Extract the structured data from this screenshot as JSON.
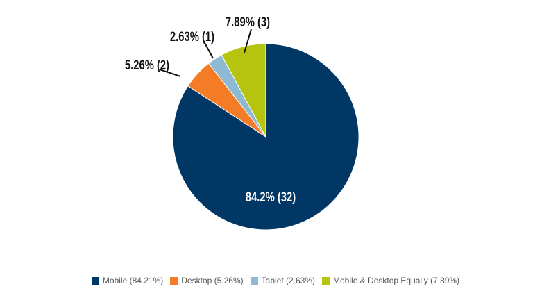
{
  "chart_data": {
    "type": "pie",
    "title": "",
    "slices": [
      {
        "name": "Mobile",
        "legend": "Mobile (84.21%)",
        "count": 32,
        "percent": 84.21,
        "label": "84.2% (32)",
        "color": "#003764",
        "label_position": "inside"
      },
      {
        "name": "Desktop",
        "legend": "Desktop (5.26%)",
        "count": 2,
        "percent": 5.26,
        "label": "5.26% (2)",
        "color": "#f47c26",
        "label_position": "outside"
      },
      {
        "name": "Tablet",
        "legend": "Tablet (2.63%)",
        "count": 1,
        "percent": 2.63,
        "label": "2.63% (1)",
        "color": "#8db9d2",
        "label_position": "outside"
      },
      {
        "name": "Mobile & Desktop Equally",
        "legend": "Mobile & Desktop Equally (7.89%)",
        "count": 3,
        "percent": 7.89,
        "label": "7.89% (3)",
        "color": "#b6c30f",
        "label_position": "outside"
      }
    ],
    "legend_placement": "bottom"
  }
}
